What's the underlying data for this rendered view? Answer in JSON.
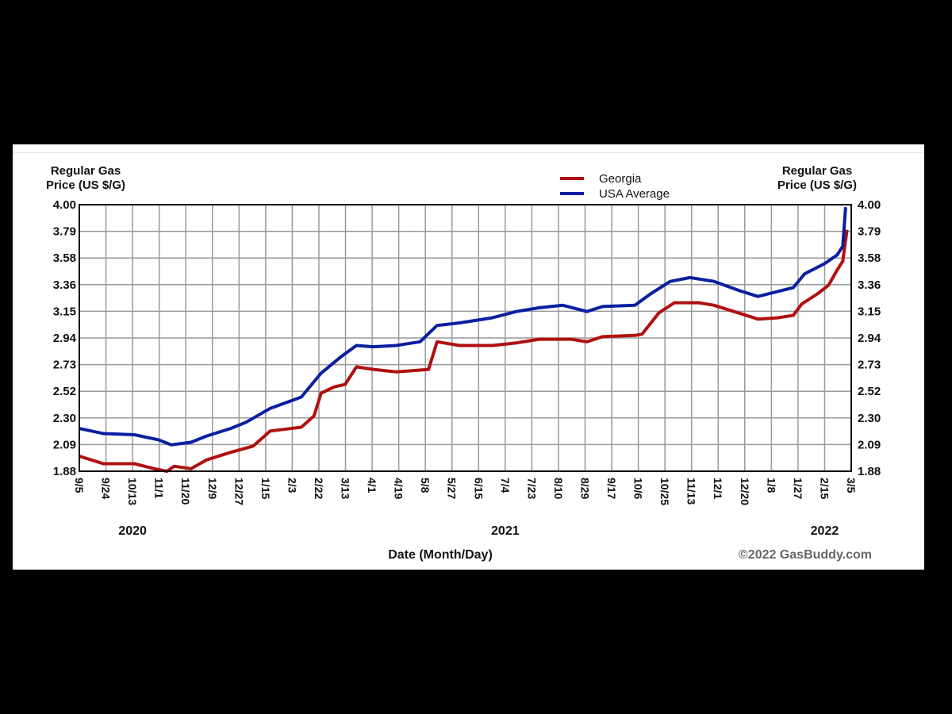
{
  "chart_data": {
    "type": "line",
    "y_axis_title": "Regular Gas Price (US $/G)",
    "y_axis_title_lines": [
      "Regular Gas",
      "Price (US $/G)"
    ],
    "xlabel": "Date (Month/Day)",
    "ylim": [
      1.88,
      4.0
    ],
    "y_ticks": [
      "4.00",
      "3.79",
      "3.58",
      "3.36",
      "3.15",
      "2.94",
      "2.73",
      "2.52",
      "2.30",
      "2.09",
      "1.88"
    ],
    "x_unit": "days since 9/5/2020",
    "xlim": [
      0,
      546
    ],
    "x_ticks": [
      "9/5",
      "9/24",
      "10/13",
      "11/1",
      "11/20",
      "12/9",
      "12/27",
      "1/15",
      "2/3",
      "2/22",
      "3/13",
      "4/1",
      "4/19",
      "5/8",
      "5/27",
      "6/15",
      "7/4",
      "7/23",
      "8/10",
      "8/29",
      "9/17",
      "10/6",
      "10/25",
      "11/13",
      "12/1",
      "12/20",
      "1/8",
      "1/27",
      "2/15",
      "3/5"
    ],
    "year_labels": [
      {
        "label": "2020",
        "tick": "10/13"
      },
      {
        "label": "2021",
        "tick": "7/4"
      },
      {
        "label": "2022",
        "tick": "2/15"
      }
    ],
    "grid": true,
    "legend_position": "top-center-right",
    "credit": "©2022 GasBuddy.com",
    "series": [
      {
        "name": "Georgia",
        "color": "#b01010",
        "x": [
          0,
          17,
          39,
          53,
          62,
          67,
          79,
          90,
          107,
          123,
          135,
          157,
          166,
          171,
          180,
          188,
          196,
          208,
          224,
          247,
          253,
          269,
          292,
          309,
          325,
          348,
          359,
          370,
          393,
          398,
          410,
          421,
          438,
          449,
          466,
          480,
          494,
          505,
          511,
          522,
          530,
          536,
          540,
          543
        ],
        "y": [
          2.0,
          1.94,
          1.94,
          1.9,
          1.88,
          1.92,
          1.9,
          1.97,
          2.03,
          2.08,
          2.2,
          2.23,
          2.32,
          2.5,
          2.55,
          2.57,
          2.71,
          2.69,
          2.67,
          2.69,
          2.91,
          2.88,
          2.88,
          2.9,
          2.93,
          2.93,
          2.91,
          2.95,
          2.96,
          2.97,
          3.14,
          3.22,
          3.22,
          3.2,
          3.14,
          3.09,
          3.1,
          3.12,
          3.21,
          3.29,
          3.36,
          3.48,
          3.55,
          3.8
        ]
      },
      {
        "name": "USA Average",
        "color": "#0a1fa0",
        "x": [
          0,
          17,
          39,
          56,
          65,
          79,
          90,
          107,
          118,
          135,
          157,
          171,
          185,
          196,
          208,
          224,
          241,
          253,
          269,
          292,
          309,
          325,
          342,
          359,
          370,
          393,
          404,
          418,
          432,
          449,
          466,
          480,
          494,
          505,
          513,
          527,
          536,
          540,
          542
        ],
        "y": [
          2.22,
          2.18,
          2.17,
          2.13,
          2.09,
          2.11,
          2.16,
          2.22,
          2.27,
          2.38,
          2.47,
          2.66,
          2.79,
          2.88,
          2.87,
          2.88,
          2.91,
          3.04,
          3.06,
          3.1,
          3.15,
          3.18,
          3.2,
          3.15,
          3.19,
          3.2,
          3.29,
          3.39,
          3.42,
          3.39,
          3.32,
          3.27,
          3.31,
          3.34,
          3.45,
          3.53,
          3.6,
          3.67,
          3.98
        ]
      }
    ]
  }
}
